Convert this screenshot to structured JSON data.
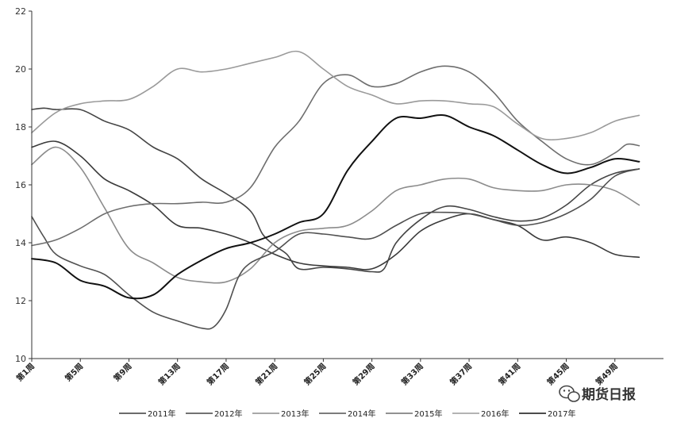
{
  "watermark": {
    "text": "期货日报",
    "icon": "wechat-icon"
  },
  "chart_data": {
    "type": "line",
    "title": "",
    "xlabel": "",
    "ylabel": "",
    "ylim": [
      10,
      22
    ],
    "yticks": [
      10,
      12,
      14,
      16,
      18,
      20,
      22
    ],
    "xlim": [
      1,
      53
    ],
    "xticks": [
      {
        "week": 1,
        "label": "第1周"
      },
      {
        "week": 5,
        "label": "第5周"
      },
      {
        "week": 9,
        "label": "第9周"
      },
      {
        "week": 13,
        "label": "第13周"
      },
      {
        "week": 17,
        "label": "第17周"
      },
      {
        "week": 21,
        "label": "第21周"
      },
      {
        "week": 25,
        "label": "第25周"
      },
      {
        "week": 29,
        "label": "第29周"
      },
      {
        "week": 33,
        "label": "第33周"
      },
      {
        "week": 37,
        "label": "第37周"
      },
      {
        "week": 41,
        "label": "第41周"
      },
      {
        "week": 45,
        "label": "第45周"
      },
      {
        "week": 49,
        "label": "第49周"
      }
    ],
    "grid": false,
    "legend_position": "bottom",
    "series": [
      {
        "name": "2011年",
        "color": "#3a3a3a",
        "points": [
          [
            1,
            17.3
          ],
          [
            3,
            17.5
          ],
          [
            5,
            17.0
          ],
          [
            7,
            16.2
          ],
          [
            9,
            15.8
          ],
          [
            11,
            15.3
          ],
          [
            13,
            14.6
          ],
          [
            15,
            14.5
          ],
          [
            17,
            14.3
          ],
          [
            19,
            14.0
          ],
          [
            21,
            13.6
          ],
          [
            23,
            13.3
          ],
          [
            25,
            13.2
          ],
          [
            27,
            13.15
          ],
          [
            29,
            13.1
          ],
          [
            31,
            13.6
          ],
          [
            33,
            14.4
          ],
          [
            35,
            14.8
          ],
          [
            37,
            15.0
          ],
          [
            39,
            14.8
          ],
          [
            41,
            14.6
          ],
          [
            43,
            14.1
          ],
          [
            45,
            14.2
          ],
          [
            47,
            14.0
          ],
          [
            49,
            13.6
          ],
          [
            51,
            13.5
          ]
        ]
      },
      {
        "name": "2012年",
        "color": "#444444",
        "points": [
          [
            1,
            18.6
          ],
          [
            2,
            18.65
          ],
          [
            3,
            18.6
          ],
          [
            5,
            18.6
          ],
          [
            7,
            18.2
          ],
          [
            9,
            17.9
          ],
          [
            11,
            17.3
          ],
          [
            13,
            16.9
          ],
          [
            15,
            16.2
          ],
          [
            17,
            15.7
          ],
          [
            19,
            15.1
          ],
          [
            20,
            14.3
          ],
          [
            21,
            13.9
          ],
          [
            22,
            13.6
          ],
          [
            23,
            13.1
          ],
          [
            25,
            13.15
          ],
          [
            27,
            13.1
          ],
          [
            29,
            13.0
          ],
          [
            30,
            13.1
          ],
          [
            31,
            14.0
          ],
          [
            33,
            14.8
          ],
          [
            35,
            15.25
          ],
          [
            37,
            15.15
          ],
          [
            39,
            14.9
          ],
          [
            41,
            14.75
          ],
          [
            43,
            14.85
          ],
          [
            45,
            15.3
          ],
          [
            47,
            16.0
          ],
          [
            49,
            16.4
          ],
          [
            51,
            16.55
          ]
        ]
      },
      {
        "name": "2013年",
        "color": "#8c8c8c",
        "points": [
          [
            1,
            16.7
          ],
          [
            3,
            17.3
          ],
          [
            5,
            16.6
          ],
          [
            7,
            15.2
          ],
          [
            9,
            13.8
          ],
          [
            11,
            13.3
          ],
          [
            13,
            12.8
          ],
          [
            15,
            12.65
          ],
          [
            17,
            12.65
          ],
          [
            19,
            13.1
          ],
          [
            21,
            14.0
          ],
          [
            23,
            14.4
          ],
          [
            25,
            14.5
          ],
          [
            27,
            14.6
          ],
          [
            29,
            15.1
          ],
          [
            31,
            15.8
          ],
          [
            33,
            16.0
          ],
          [
            35,
            16.2
          ],
          [
            37,
            16.2
          ],
          [
            39,
            15.9
          ],
          [
            41,
            15.8
          ],
          [
            43,
            15.8
          ],
          [
            45,
            16.0
          ],
          [
            47,
            16.0
          ],
          [
            49,
            15.8
          ],
          [
            51,
            15.3
          ]
        ]
      },
      {
        "name": "2014年",
        "color": "#505050",
        "points": [
          [
            1,
            14.9
          ],
          [
            2,
            14.2
          ],
          [
            3,
            13.6
          ],
          [
            5,
            13.2
          ],
          [
            7,
            12.9
          ],
          [
            9,
            12.2
          ],
          [
            11,
            11.6
          ],
          [
            13,
            11.3
          ],
          [
            15,
            11.05
          ],
          [
            16,
            11.1
          ],
          [
            17,
            11.7
          ],
          [
            18,
            12.8
          ],
          [
            19,
            13.3
          ],
          [
            21,
            13.7
          ],
          [
            23,
            14.3
          ],
          [
            25,
            14.3
          ],
          [
            27,
            14.2
          ],
          [
            29,
            14.15
          ],
          [
            31,
            14.6
          ],
          [
            33,
            15.0
          ],
          [
            35,
            15.05
          ],
          [
            37,
            15.0
          ],
          [
            39,
            14.8
          ],
          [
            41,
            14.6
          ],
          [
            43,
            14.7
          ],
          [
            45,
            15.0
          ],
          [
            47,
            15.5
          ],
          [
            49,
            16.3
          ],
          [
            51,
            16.55
          ]
        ]
      },
      {
        "name": "2015年",
        "color": "#6e6e6e",
        "points": [
          [
            1,
            13.9
          ],
          [
            3,
            14.1
          ],
          [
            5,
            14.5
          ],
          [
            7,
            15.0
          ],
          [
            9,
            15.25
          ],
          [
            11,
            15.35
          ],
          [
            13,
            15.35
          ],
          [
            15,
            15.4
          ],
          [
            17,
            15.4
          ],
          [
            19,
            15.9
          ],
          [
            21,
            17.3
          ],
          [
            23,
            18.2
          ],
          [
            25,
            19.5
          ],
          [
            27,
            19.8
          ],
          [
            29,
            19.4
          ],
          [
            31,
            19.5
          ],
          [
            33,
            19.9
          ],
          [
            35,
            20.1
          ],
          [
            37,
            19.9
          ],
          [
            39,
            19.2
          ],
          [
            41,
            18.2
          ],
          [
            43,
            17.5
          ],
          [
            45,
            16.9
          ],
          [
            47,
            16.7
          ],
          [
            49,
            17.1
          ],
          [
            50,
            17.4
          ],
          [
            51,
            17.35
          ]
        ]
      },
      {
        "name": "2016年",
        "color": "#9a9a9a",
        "points": [
          [
            1,
            17.8
          ],
          [
            3,
            18.5
          ],
          [
            5,
            18.8
          ],
          [
            7,
            18.9
          ],
          [
            9,
            18.95
          ],
          [
            11,
            19.4
          ],
          [
            13,
            20.0
          ],
          [
            15,
            19.9
          ],
          [
            17,
            20.0
          ],
          [
            19,
            20.2
          ],
          [
            21,
            20.4
          ],
          [
            23,
            20.6
          ],
          [
            25,
            20.0
          ],
          [
            27,
            19.4
          ],
          [
            29,
            19.1
          ],
          [
            31,
            18.8
          ],
          [
            33,
            18.9
          ],
          [
            35,
            18.9
          ],
          [
            37,
            18.8
          ],
          [
            39,
            18.7
          ],
          [
            41,
            18.1
          ],
          [
            43,
            17.6
          ],
          [
            45,
            17.6
          ],
          [
            47,
            17.8
          ],
          [
            49,
            18.2
          ],
          [
            51,
            18.4
          ]
        ]
      },
      {
        "name": "2017年",
        "color": "#111111",
        "points": [
          [
            1,
            13.45
          ],
          [
            3,
            13.3
          ],
          [
            5,
            12.7
          ],
          [
            7,
            12.5
          ],
          [
            9,
            12.1
          ],
          [
            11,
            12.2
          ],
          [
            13,
            12.9
          ],
          [
            15,
            13.4
          ],
          [
            17,
            13.8
          ],
          [
            19,
            14.0
          ],
          [
            21,
            14.3
          ],
          [
            23,
            14.7
          ],
          [
            25,
            15.0
          ],
          [
            27,
            16.5
          ],
          [
            29,
            17.5
          ],
          [
            31,
            18.3
          ],
          [
            33,
            18.3
          ],
          [
            35,
            18.4
          ],
          [
            37,
            18.0
          ],
          [
            39,
            17.7
          ],
          [
            41,
            17.2
          ],
          [
            43,
            16.7
          ],
          [
            45,
            16.4
          ],
          [
            47,
            16.6
          ],
          [
            49,
            16.9
          ],
          [
            51,
            16.8
          ]
        ]
      }
    ]
  }
}
